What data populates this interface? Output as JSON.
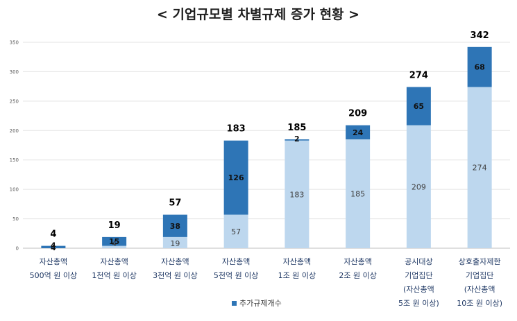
{
  "chart_data": {
    "type": "bar",
    "stacked": true,
    "title": "< 기업규모별 차별규제 증가 현황 >",
    "categories": [
      [
        "자산총액",
        "500억 원 이상"
      ],
      [
        "자산총액",
        "1천억 원 이상"
      ],
      [
        "자산총액",
        "3천억 원 이상"
      ],
      [
        "자산총액",
        "5천억 원 이상"
      ],
      [
        "자산총액",
        "1조 원 이상"
      ],
      [
        "자산총액",
        "2조 원 이상"
      ],
      [
        "공시대상",
        "기업집단",
        "(자산총액",
        "5조 원 이상)"
      ],
      [
        "상호출자제한",
        "기업집단",
        "(자산총액",
        "10조 원 이상)"
      ]
    ],
    "series": [
      {
        "values": [
          0,
          4,
          19,
          57,
          183,
          185,
          209,
          274
        ],
        "color": "#bdd7ee"
      },
      {
        "name": "추가규제개수",
        "values": [
          4,
          15,
          38,
          126,
          2,
          24,
          65,
          68
        ],
        "color": "#2e75b6"
      }
    ],
    "totals": [
      4,
      19,
      57,
      183,
      185,
      209,
      274,
      342
    ],
    "yticks": [
      0,
      50,
      100,
      150,
      200,
      250,
      300,
      350
    ],
    "ylim": [
      0,
      350
    ],
    "grid": true,
    "legend": "bottom-center"
  }
}
